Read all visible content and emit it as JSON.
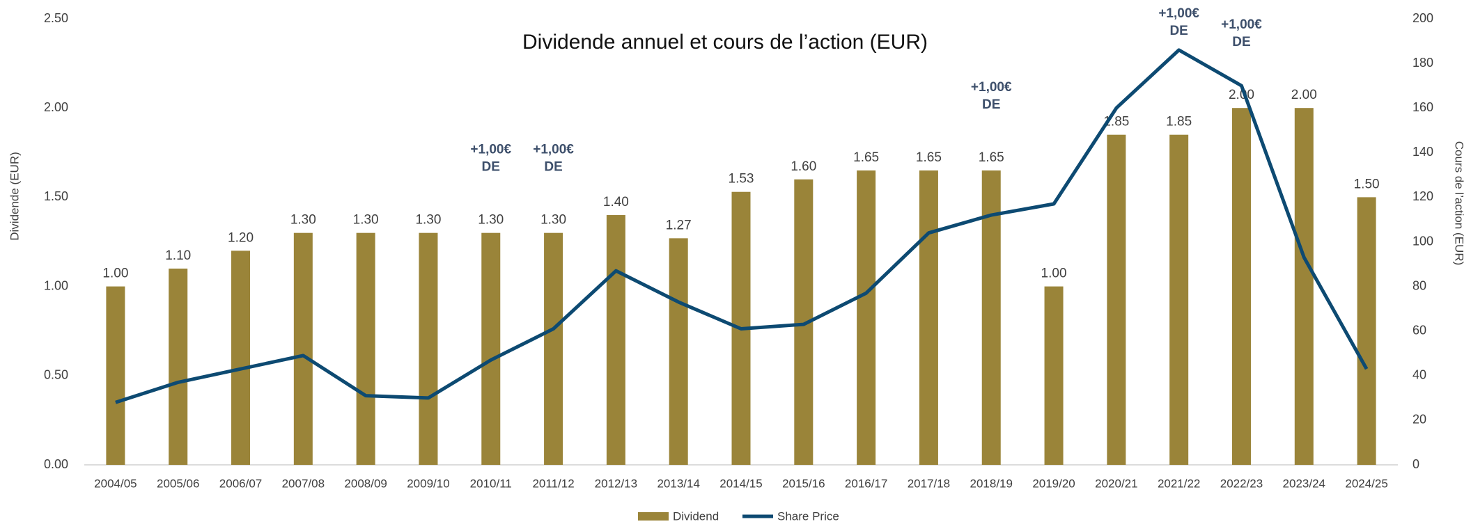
{
  "chart_data": {
    "type": "bar",
    "title": "Dividende annuel et cours de l’action (EUR)",
    "y_label": "Dividende (EUR)",
    "y2_label": "Cours de l’action (EUR)",
    "categories": [
      "2004/05",
      "2005/06",
      "2006/07",
      "2007/08",
      "2008/09",
      "2009/10",
      "2010/11",
      "2011/12",
      "2012/13",
      "2013/14",
      "2014/15",
      "2015/16",
      "2016/17",
      "2017/18",
      "2018/19",
      "2019/20",
      "2020/21",
      "2021/22",
      "2022/23",
      "2023/24",
      "2024/25"
    ],
    "series": [
      {
        "name": "Dividend",
        "type": "bar",
        "color": "#9a8439",
        "values": [
          1.0,
          1.1,
          1.2,
          1.3,
          1.3,
          1.3,
          1.3,
          1.3,
          1.4,
          1.27,
          1.53,
          1.6,
          1.65,
          1.65,
          1.65,
          1.0,
          1.85,
          1.85,
          2.0,
          2.0,
          1.5
        ],
        "value_labels": [
          "1.00",
          "1.10",
          "1.20",
          "1.30",
          "1.30",
          "1.30",
          "1.30",
          "1.30",
          "1.40",
          "1.27",
          "1.53",
          "1.60",
          "1.65",
          "1.65",
          "1.65",
          "1.00",
          "1.85",
          "1.85",
          "2.00",
          "2.00",
          "1.50"
        ]
      },
      {
        "name": "Share Price",
        "type": "line",
        "axis": "y2",
        "color": "#0d4a72",
        "values": [
          28,
          37,
          43,
          49,
          31,
          30,
          47,
          61,
          87,
          73,
          61,
          63,
          77,
          104,
          112,
          117,
          160,
          186,
          170,
          93,
          43
        ]
      }
    ],
    "ylim": [
      0,
      2.5
    ],
    "yticks": [
      {
        "value": 0,
        "label": "0.00"
      },
      {
        "value": 0.5,
        "label": "0.50"
      },
      {
        "value": 1,
        "label": "1.00"
      },
      {
        "value": 1.5,
        "label": "1.50"
      },
      {
        "value": 2,
        "label": "2.00"
      },
      {
        "value": 2.5,
        "label": "2.50"
      }
    ],
    "y2lim": [
      0,
      200
    ],
    "y2ticks": [
      0,
      20,
      40,
      60,
      80,
      100,
      120,
      140,
      160,
      180,
      200
    ],
    "annotations": [
      {
        "x": "2010/11",
        "lines": [
          "+1,00€",
          "DE"
        ]
      },
      {
        "x": "2011/12",
        "lines": [
          "+1,00€",
          "DE"
        ]
      },
      {
        "x": "2018/19",
        "lines": [
          "+1,00€",
          "DE"
        ]
      },
      {
        "x": "2021/22",
        "lines": [
          "+1,00€",
          "DE"
        ]
      },
      {
        "x": "2022/23",
        "lines": [
          "+1,00€",
          "DE"
        ]
      }
    ],
    "legend": "bottom",
    "grid": false
  }
}
